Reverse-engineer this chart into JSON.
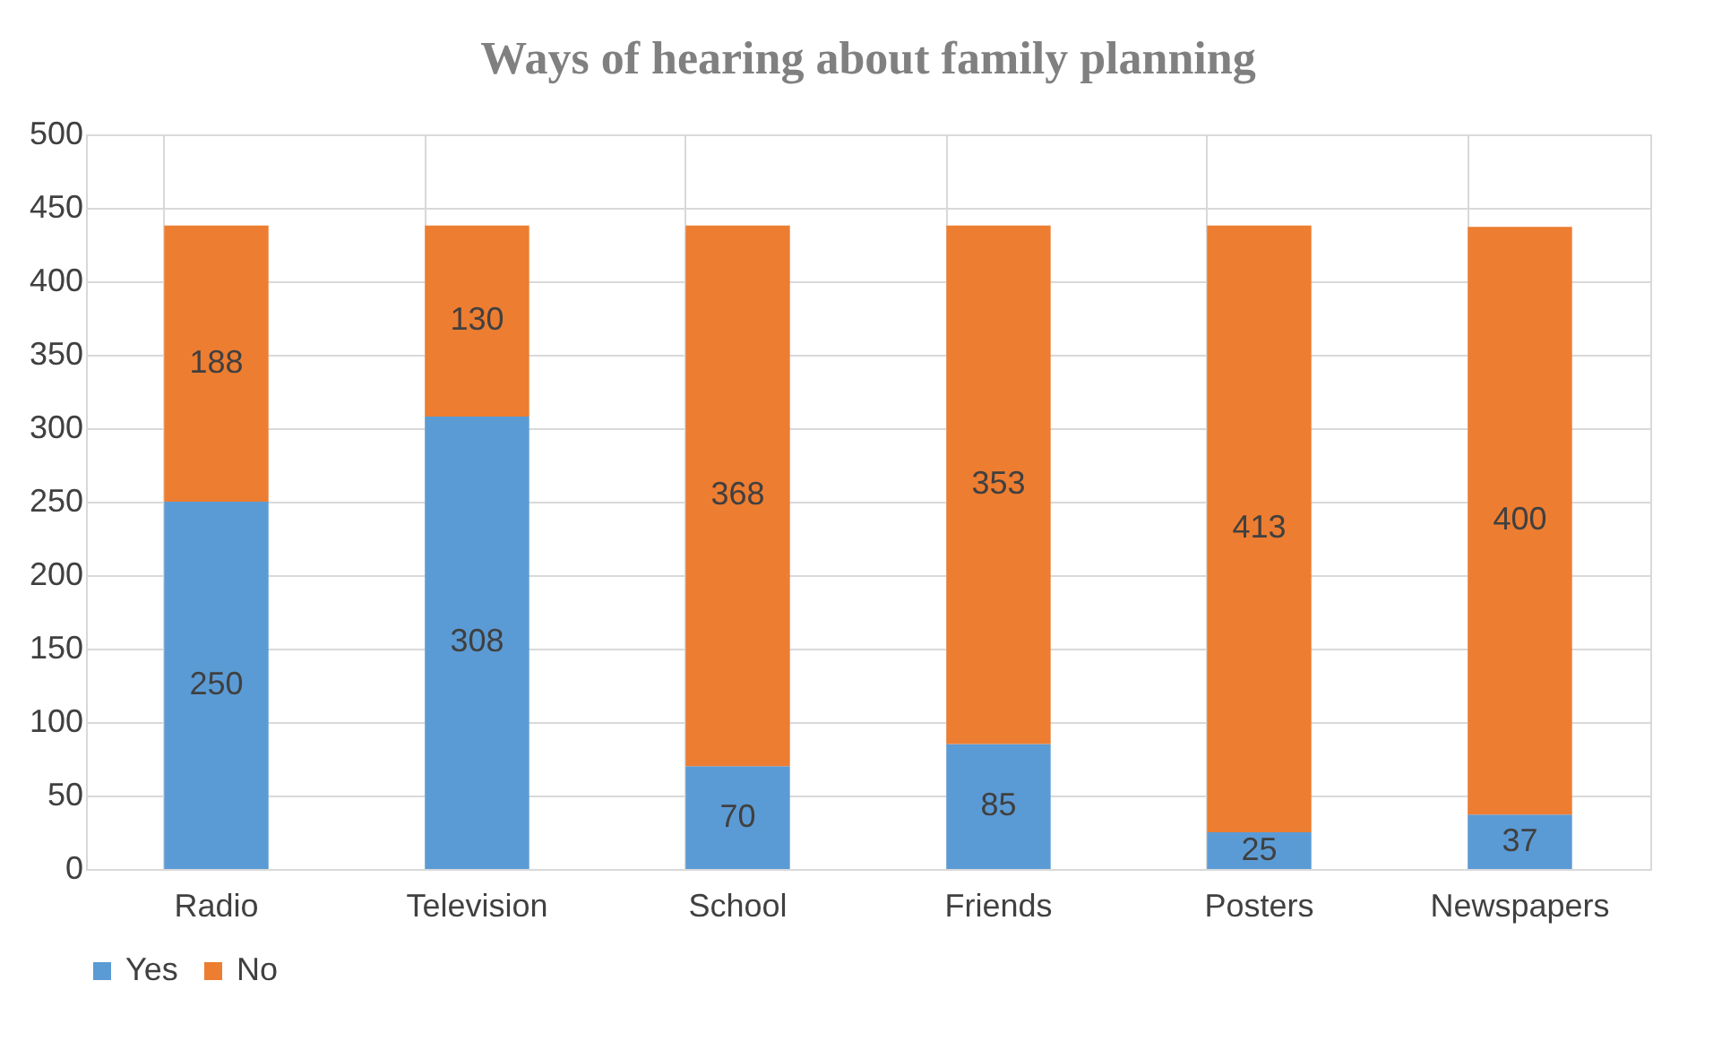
{
  "chart_data": {
    "type": "bar",
    "title": "Ways of hearing about family planning",
    "categories": [
      "Radio",
      "Television",
      "School",
      "Friends",
      "Posters",
      "Newspapers"
    ],
    "series": [
      {
        "name": "Yes",
        "color": "#5b9bd5",
        "values": [
          250,
          308,
          70,
          85,
          25,
          37
        ]
      },
      {
        "name": "No",
        "color": "#ed7d31",
        "values": [
          188,
          130,
          368,
          353,
          413,
          400
        ]
      }
    ],
    "stacked": true,
    "ylim": [
      0,
      500
    ],
    "yticks": [
      0,
      50,
      100,
      150,
      200,
      250,
      300,
      350,
      400,
      450,
      500
    ],
    "grid": true,
    "legend": "bottom",
    "data_labels": true
  }
}
